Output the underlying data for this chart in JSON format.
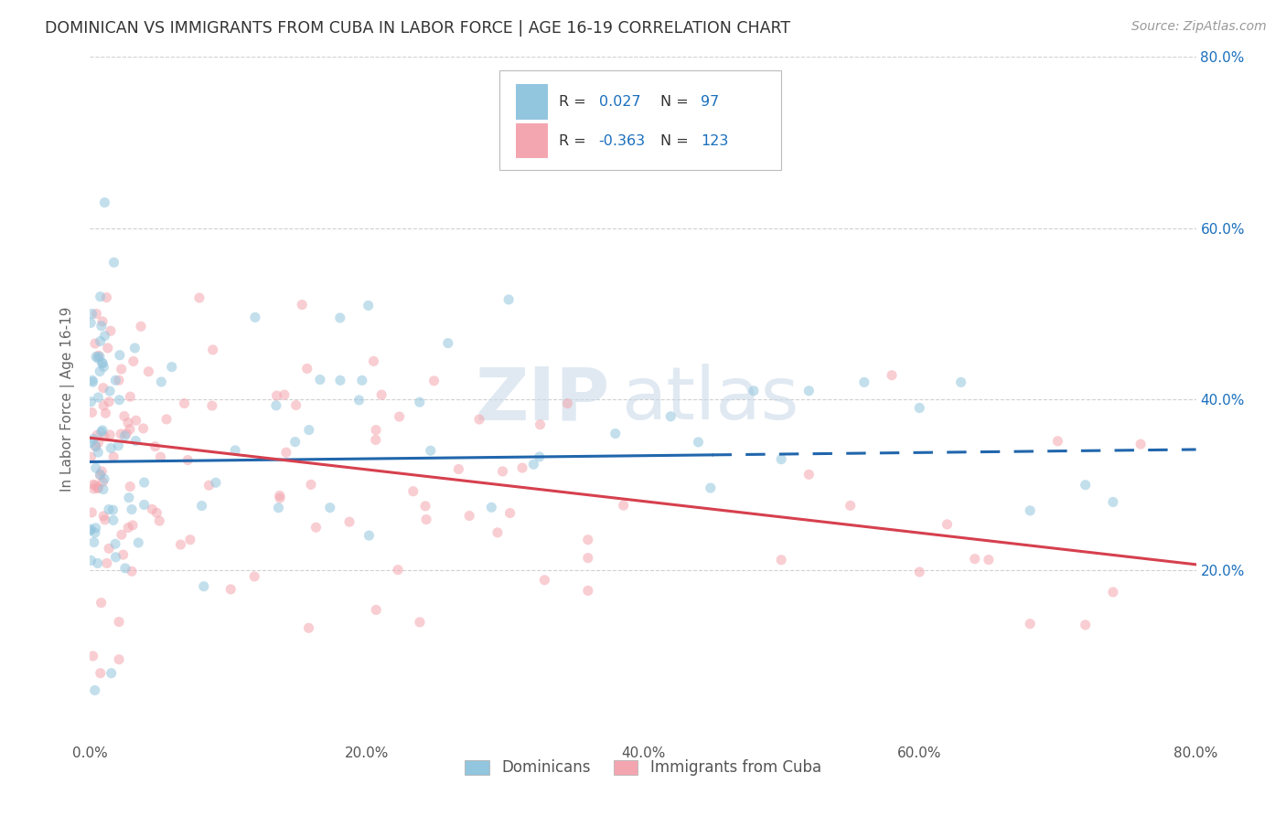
{
  "title": "DOMINICAN VS IMMIGRANTS FROM CUBA IN LABOR FORCE | AGE 16-19 CORRELATION CHART",
  "source": "Source: ZipAtlas.com",
  "ylabel": "In Labor Force | Age 16-19",
  "xlim": [
    0.0,
    0.8
  ],
  "ylim": [
    0.0,
    0.8
  ],
  "xticks": [
    0.0,
    0.2,
    0.4,
    0.6,
    0.8
  ],
  "xtick_labels": [
    "0.0%",
    "20.0%",
    "40.0%",
    "60.0%",
    "80.0%"
  ],
  "yticks_right": [
    0.2,
    0.4,
    0.6,
    0.8
  ],
  "ytick_labels_right": [
    "20.0%",
    "40.0%",
    "60.0%",
    "80.0%"
  ],
  "series1_label": "Dominicans",
  "series2_label": "Immigrants from Cuba",
  "series1_color": "#92c5de",
  "series2_color": "#f4a6b0",
  "series1_line_color": "#2166ac",
  "series2_line_color": "#d6404e",
  "series1_R": 0.027,
  "series1_N": 97,
  "series2_R": -0.363,
  "series2_N": 123,
  "legend_R_color": "#1a6fbd",
  "marker_size": 65,
  "marker_alpha": 0.55,
  "grid_color": "#cccccc",
  "title_color": "#333333",
  "watermark_color": "#c8d8e8",
  "watermark_alpha": 0.55,
  "blue_line_solid_end": 0.45,
  "blue_line_intercept": 0.327,
  "blue_line_slope": 0.018,
  "pink_line_intercept": 0.355,
  "pink_line_slope": -0.185
}
